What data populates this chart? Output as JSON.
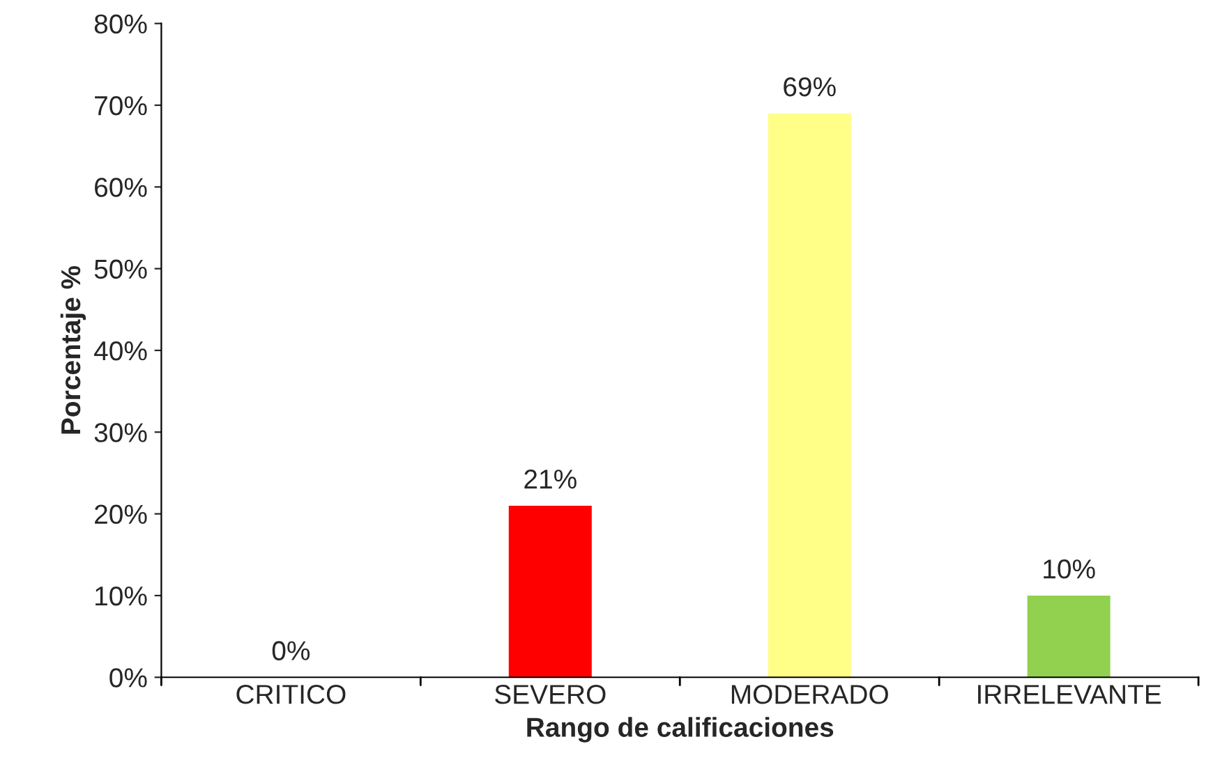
{
  "chart_data": {
    "type": "bar",
    "xlabel": "Rango de calificaciones",
    "ylabel": "Porcentaje %",
    "categories": [
      "CRITICO",
      "SEVERO",
      "MODERADO",
      "IRRELEVANTE"
    ],
    "values": [
      0,
      21,
      69,
      10
    ],
    "colors": [
      "#ff0000",
      "#ff0000",
      "#ffff88",
      "#92d050"
    ],
    "value_labels": [
      "0%",
      "21%",
      "69%",
      "10%"
    ],
    "ylim": [
      0,
      80
    ],
    "yticks": [
      {
        "value": 0,
        "label": "0%"
      },
      {
        "value": 10,
        "label": "10%"
      },
      {
        "value": 20,
        "label": "20%"
      },
      {
        "value": 30,
        "label": "30%"
      },
      {
        "value": 40,
        "label": "40%"
      },
      {
        "value": 50,
        "label": "50%"
      },
      {
        "value": 60,
        "label": "60%"
      },
      {
        "value": 70,
        "label": "70%"
      },
      {
        "value": 80,
        "label": "80%"
      }
    ],
    "grid": false,
    "legend": false
  }
}
